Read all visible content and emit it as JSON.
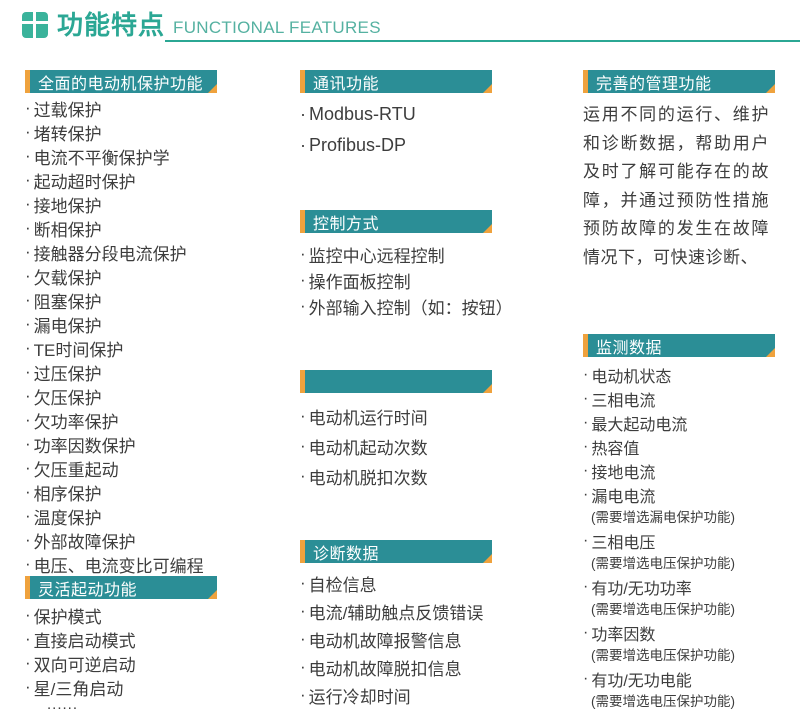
{
  "header": {
    "title": "功能特点",
    "subtitle": "FUNCTIONAL FEATURES"
  },
  "colors": {
    "section_header_bg": "#2b8e96",
    "accent_orange": "#efa23d",
    "title_teal": "#2ba794",
    "subtitle_teal": "#55b1a1",
    "body_text": "#3d3d3d"
  },
  "col1": {
    "protection": {
      "title": "全面的电动机保护功能",
      "items": [
        "过载保护",
        "堵转保护",
        "电流不平衡保护学",
        "起动超时保护",
        "接地保护",
        "断相保护",
        "接触器分段电流保护",
        "欠载保护",
        "阻塞保护",
        "漏电保护",
        "TE时间保护",
        "过压保护",
        "欠压保护",
        "欠功率保护",
        "功率因数保护",
        "欠压重起动",
        "相序保护",
        "温度保护",
        "外部故障保护",
        "电压、电流变比可编程"
      ]
    },
    "start": {
      "title": "灵活起动功能",
      "items": [
        "保护模式",
        "直接启动模式",
        "双向可逆启动",
        "星/三角启动"
      ],
      "ellipsis": "......"
    }
  },
  "col2": {
    "comm": {
      "title": "通讯功能",
      "items": [
        "Modbus-RTU",
        "Profibus-DP"
      ]
    },
    "control": {
      "title": "控制方式",
      "items": [
        "监控中心远程控制",
        "操作面板控制",
        "外部输入控制（如：按钮）"
      ]
    },
    "runtime": {
      "title": "",
      "items": [
        "电动机运行时间",
        "电动机起动次数",
        "电动机脱扣次数"
      ]
    },
    "diagnosis": {
      "title": "诊断数据",
      "items": [
        "自检信息",
        "电流/辅助触点反馈错误",
        "电动机故障报警信息",
        "电动机故障脱扣信息",
        "运行冷却时间"
      ]
    }
  },
  "col3": {
    "management": {
      "title": "完善的管理功能",
      "paragraph": "运用不同的运行、维护和诊断数据，帮助用户及时了解可能存在的故障，并通过预防性措施预防故障的发生在故障情况下，可快速诊断、"
    },
    "monitor": {
      "title": "监测数据",
      "items": [
        {
          "text": "电动机状态"
        },
        {
          "text": "三相电流"
        },
        {
          "text": "最大起动电流"
        },
        {
          "text": "热容值"
        },
        {
          "text": "接地电流"
        },
        {
          "text": "漏电电流",
          "note": "(需要增选漏电保护功能)"
        },
        {
          "text": "三相电压",
          "note": "(需要增选电压保护功能)"
        },
        {
          "text": "有功/无功功率",
          "note": "(需要增选电压保护功能)"
        },
        {
          "text": "功率因数",
          "note": "(需要增选电压保护功能)"
        },
        {
          "text": "有功/无功电能",
          "note": "(需要增选电压保护功能)"
        }
      ]
    }
  }
}
